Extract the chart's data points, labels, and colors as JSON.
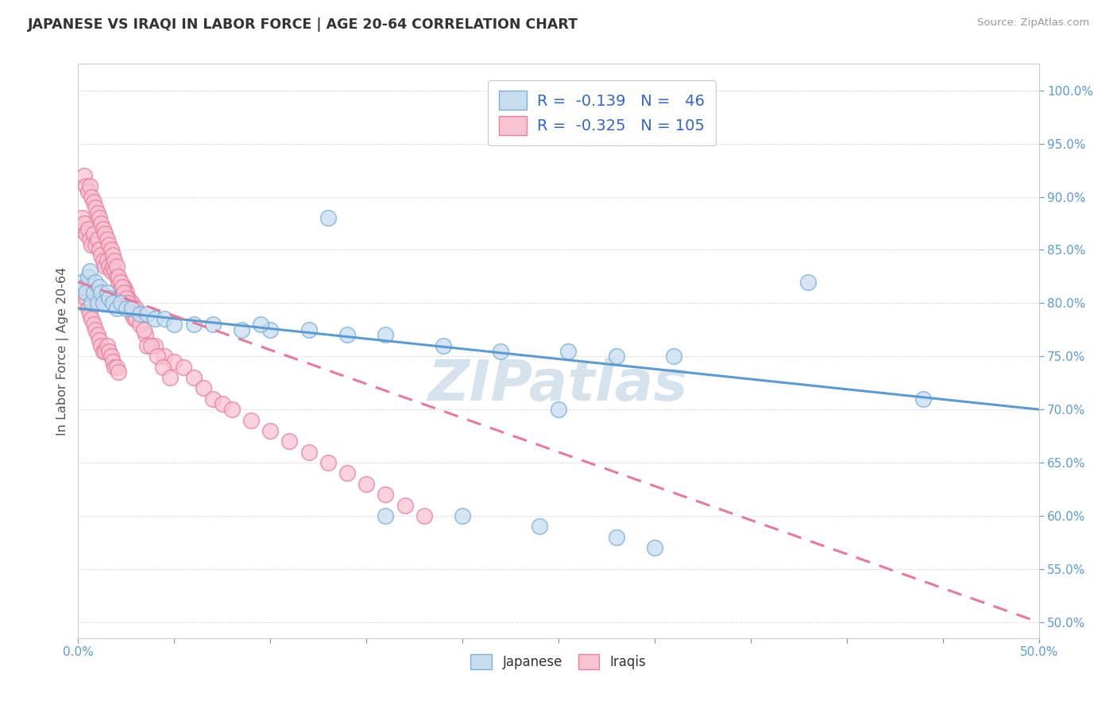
{
  "title": "JAPANESE VS IRAQI IN LABOR FORCE | AGE 20-64 CORRELATION CHART",
  "source_text": "Source: ZipAtlas.com",
  "ylabel_text": "In Labor Force | Age 20-64",
  "xlim": [
    0.0,
    0.5
  ],
  "ylim": [
    0.485,
    1.025
  ],
  "xticks": [
    0.0,
    0.05,
    0.1,
    0.15,
    0.2,
    0.25,
    0.3,
    0.35,
    0.4,
    0.45,
    0.5
  ],
  "xticklabels": [
    "0.0%",
    "",
    "",
    "",
    "",
    "",
    "",
    "",
    "",
    "",
    "50.0%"
  ],
  "yticks": [
    0.5,
    0.55,
    0.6,
    0.65,
    0.7,
    0.75,
    0.8,
    0.85,
    0.9,
    0.95,
    1.0
  ],
  "yticklabels": [
    "50.0%",
    "55.0%",
    "60.0%",
    "65.0%",
    "70.0%",
    "75.0%",
    "80.0%",
    "85.0%",
    "90.0%",
    "95.0%",
    "100.0%"
  ],
  "japanese_face_color": "#c8ddf0",
  "japanese_edge_color": "#7bafd4",
  "iraqi_face_color": "#f9c4d2",
  "iraqi_edge_color": "#e87fa0",
  "japanese_line_color": "#5b9bd5",
  "iraqi_line_color": "#e8799a",
  "iraqi_dash_color": "#f0b0c0",
  "watermark_text": "ZIPatlas",
  "watermark_color": "#ccdde8",
  "japanese_r": -0.139,
  "japanese_n": 46,
  "iraqi_r": -0.325,
  "iraqi_n": 105,
  "grid_color": "#dddddd",
  "spine_color": "#cccccc",
  "tick_color": "#5b9bd5",
  "title_color": "#333333",
  "source_color": "#999999",
  "ylabel_color": "#555555",
  "legend_label_color": "#3366cc",
  "japanese_scatter_x": [
    0.002,
    0.003,
    0.004,
    0.005,
    0.006,
    0.007,
    0.008,
    0.009,
    0.01,
    0.011,
    0.012,
    0.013,
    0.015,
    0.016,
    0.018,
    0.02,
    0.022,
    0.025,
    0.028,
    0.032,
    0.036,
    0.04,
    0.045,
    0.05,
    0.06,
    0.07,
    0.085,
    0.1,
    0.12,
    0.14,
    0.16,
    0.19,
    0.22,
    0.255,
    0.28,
    0.31,
    0.16,
    0.2,
    0.24,
    0.28,
    0.3,
    0.38,
    0.44,
    0.25,
    0.095,
    0.13
  ],
  "japanese_scatter_y": [
    0.82,
    0.815,
    0.81,
    0.825,
    0.83,
    0.8,
    0.81,
    0.82,
    0.8,
    0.815,
    0.81,
    0.8,
    0.81,
    0.805,
    0.8,
    0.795,
    0.8,
    0.795,
    0.795,
    0.79,
    0.79,
    0.785,
    0.785,
    0.78,
    0.78,
    0.78,
    0.775,
    0.775,
    0.775,
    0.77,
    0.77,
    0.76,
    0.755,
    0.755,
    0.75,
    0.75,
    0.6,
    0.6,
    0.59,
    0.58,
    0.57,
    0.82,
    0.71,
    0.7,
    0.78,
    0.88
  ],
  "iraqi_scatter_x": [
    0.001,
    0.002,
    0.003,
    0.004,
    0.005,
    0.006,
    0.007,
    0.008,
    0.009,
    0.01,
    0.011,
    0.012,
    0.013,
    0.014,
    0.015,
    0.016,
    0.017,
    0.018,
    0.019,
    0.02,
    0.021,
    0.022,
    0.023,
    0.024,
    0.025,
    0.026,
    0.027,
    0.028,
    0.029,
    0.03,
    0.002,
    0.003,
    0.004,
    0.005,
    0.006,
    0.007,
    0.008,
    0.009,
    0.01,
    0.011,
    0.012,
    0.013,
    0.014,
    0.015,
    0.016,
    0.017,
    0.018,
    0.019,
    0.02,
    0.021,
    0.035,
    0.04,
    0.045,
    0.05,
    0.055,
    0.06,
    0.065,
    0.07,
    0.075,
    0.08,
    0.09,
    0.1,
    0.11,
    0.12,
    0.13,
    0.14,
    0.15,
    0.16,
    0.17,
    0.18,
    0.003,
    0.004,
    0.005,
    0.006,
    0.007,
    0.008,
    0.009,
    0.01,
    0.011,
    0.012,
    0.013,
    0.014,
    0.015,
    0.016,
    0.017,
    0.018,
    0.019,
    0.02,
    0.021,
    0.022,
    0.023,
    0.024,
    0.025,
    0.026,
    0.027,
    0.028,
    0.029,
    0.03,
    0.032,
    0.034,
    0.036,
    0.038,
    0.041,
    0.044,
    0.048
  ],
  "iraqi_scatter_y": [
    0.87,
    0.88,
    0.875,
    0.865,
    0.87,
    0.86,
    0.855,
    0.865,
    0.855,
    0.86,
    0.85,
    0.845,
    0.84,
    0.835,
    0.84,
    0.835,
    0.83,
    0.835,
    0.83,
    0.825,
    0.82,
    0.815,
    0.81,
    0.815,
    0.81,
    0.805,
    0.8,
    0.8,
    0.795,
    0.795,
    0.81,
    0.8,
    0.805,
    0.795,
    0.79,
    0.785,
    0.78,
    0.775,
    0.77,
    0.765,
    0.76,
    0.755,
    0.755,
    0.76,
    0.755,
    0.75,
    0.745,
    0.74,
    0.74,
    0.735,
    0.77,
    0.76,
    0.75,
    0.745,
    0.74,
    0.73,
    0.72,
    0.71,
    0.705,
    0.7,
    0.69,
    0.68,
    0.67,
    0.66,
    0.65,
    0.64,
    0.63,
    0.62,
    0.61,
    0.6,
    0.92,
    0.91,
    0.905,
    0.91,
    0.9,
    0.895,
    0.89,
    0.885,
    0.88,
    0.875,
    0.87,
    0.865,
    0.86,
    0.855,
    0.85,
    0.845,
    0.84,
    0.835,
    0.825,
    0.82,
    0.815,
    0.81,
    0.805,
    0.8,
    0.795,
    0.79,
    0.785,
    0.785,
    0.78,
    0.775,
    0.76,
    0.76,
    0.75,
    0.74,
    0.73
  ]
}
